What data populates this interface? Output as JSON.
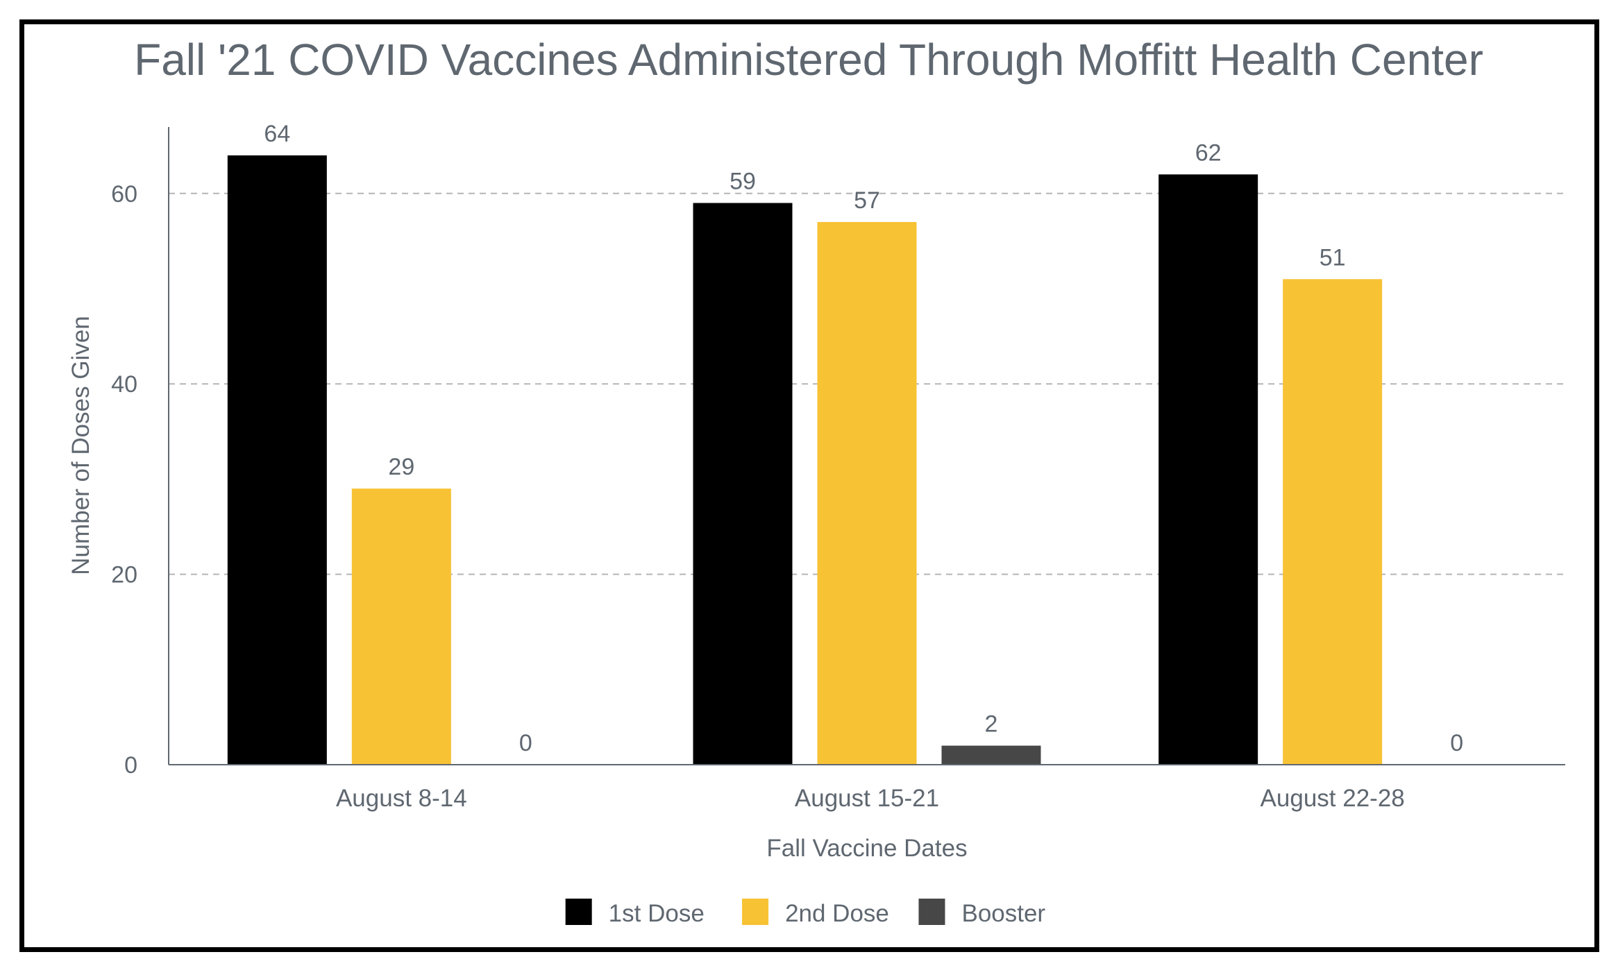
{
  "chart_data": {
    "type": "bar",
    "title": "Fall '21 COVID Vaccines Administered Through Moffitt Health Center",
    "xlabel": "Fall Vaccine Dates",
    "ylabel": "Number of Doses Given",
    "categories": [
      "August 8-14",
      "August 15-21",
      "August 22-28"
    ],
    "series": [
      {
        "name": "1st Dose",
        "color": "#000000",
        "values": [
          64,
          59,
          62
        ]
      },
      {
        "name": "2nd Dose",
        "color": "#f7c234",
        "values": [
          29,
          57,
          51
        ]
      },
      {
        "name": "Booster",
        "color": "#474747",
        "values": [
          0,
          2,
          0
        ]
      }
    ],
    "yticks": [
      0,
      20,
      40,
      60
    ],
    "ylim": [
      0,
      67
    ],
    "grid": "horizontal dashed",
    "legend": "bottom-center",
    "data_labels": true
  }
}
